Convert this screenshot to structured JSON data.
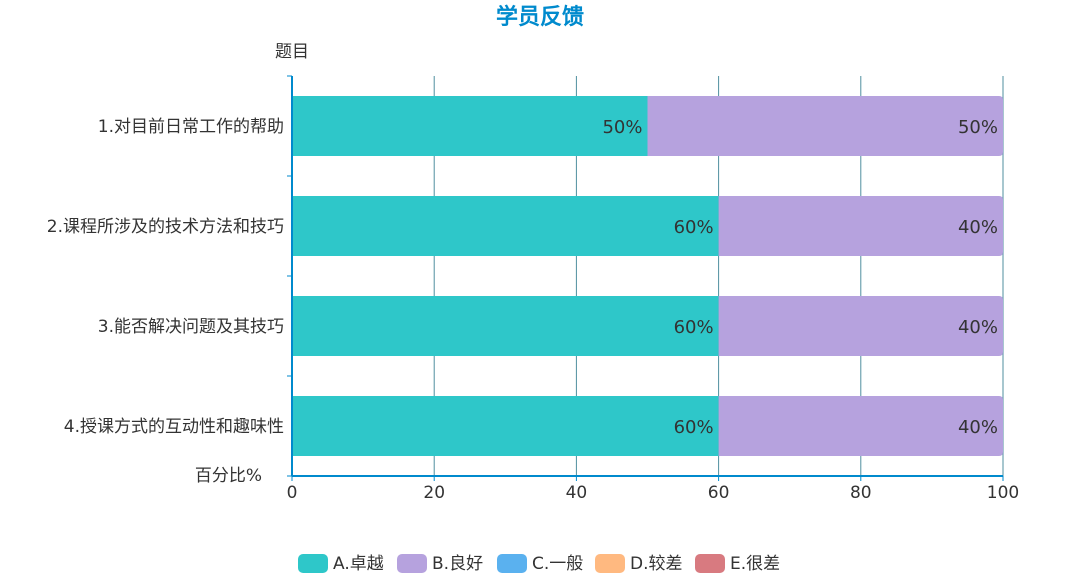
{
  "chart_data": {
    "type": "bar",
    "orientation": "horizontal",
    "stacked": true,
    "title": "学员反馈",
    "ylabel": "题目",
    "xlabel": "百分比%",
    "xlim": [
      0,
      100
    ],
    "x_ticks": [
      "0",
      "20",
      "40",
      "60",
      "80",
      "100"
    ],
    "categories": [
      "1.对目前日常工作的帮助",
      "2.课程所涉及的技术方法和技巧",
      "3.能否解决问题及其技巧",
      "4.授课方式的互动性和趣味性"
    ],
    "series": [
      {
        "name": "A.卓越",
        "color": "#2ec7c9",
        "values": [
          50,
          60,
          60,
          60
        ],
        "labels": [
          "50%",
          "60%",
          "60%",
          "60%"
        ]
      },
      {
        "name": "B.良好",
        "color": "#b6a2de",
        "values": [
          50,
          40,
          40,
          40
        ],
        "labels": [
          "50%",
          "40%",
          "40%",
          "40%"
        ]
      },
      {
        "name": "C.一般",
        "color": "#5ab1ef",
        "values": [
          0,
          0,
          0,
          0
        ],
        "labels": [
          "",
          "",
          "",
          ""
        ]
      },
      {
        "name": "D.较差",
        "color": "#ffb980",
        "values": [
          0,
          0,
          0,
          0
        ],
        "labels": [
          "",
          "",
          "",
          ""
        ]
      },
      {
        "name": "E.很差",
        "color": "#d87a80",
        "values": [
          0,
          0,
          0,
          0
        ],
        "labels": [
          "",
          "",
          "",
          ""
        ]
      }
    ],
    "grid": true,
    "legend_position": "bottom-center",
    "colors": {
      "title": "#008acd",
      "axis": "#008acd",
      "grid": "#4f8f9f"
    }
  }
}
